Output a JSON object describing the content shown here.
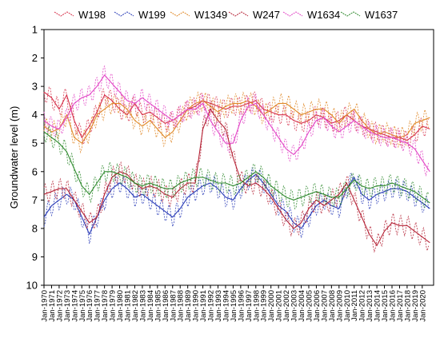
{
  "chart_data": {
    "type": "line",
    "ylabel": "Groundwater level (m)",
    "xlabel": "",
    "title": "",
    "legend_placement": "top",
    "grid": false,
    "y_inverted": true,
    "ylim": [
      1,
      10
    ],
    "yticks": [
      1,
      2,
      3,
      4,
      5,
      6,
      7,
      8,
      9,
      10
    ],
    "xlim_years": [
      1970,
      2021.5
    ],
    "xtick_labels": [
      "Jan-1970",
      "Jan-1971",
      "Jan-1972",
      "Jan-1973",
      "Jan-1974",
      "Jan-1975",
      "Jan-1976",
      "Jan-1977",
      "Jan-1978",
      "Jan-1979",
      "Jan-1980",
      "Jan-1981",
      "Jan-1982",
      "Jan-1983",
      "Jan-1984",
      "Jan-1985",
      "Jan-1986",
      "Jan-1987",
      "Jan-1988",
      "Jan-1989",
      "Jan-1990",
      "Jan-1991",
      "Jan-1992",
      "Jan-1993",
      "Jan-1994",
      "Jan-1995",
      "Jan-1996",
      "Jan-1997",
      "Jan-1998",
      "Jan-1999",
      "Jan-2000",
      "Jan-2001",
      "Jan-2002",
      "Jan-2003",
      "Jan-2004",
      "Jan-2005",
      "Jan-2006",
      "Jan-2007",
      "Jan-2008",
      "Jan-2009",
      "Jan-2010",
      "Jan-2011",
      "Jan-2012",
      "Jan-2013",
      "Jan-2014",
      "Jan-2015",
      "Jan-2016",
      "Jan-2017",
      "Jan-2018",
      "Jan-2019",
      "Jan-2020"
    ],
    "series": [
      {
        "name": "W198",
        "color": "#d6304a",
        "x": [
          1970,
          1971,
          1972,
          1973,
          1974,
          1975,
          1976,
          1977,
          1978,
          1979,
          1980,
          1981,
          1982,
          1983,
          1984,
          1985,
          1986,
          1987,
          1988,
          1989,
          1990,
          1991,
          1992,
          1993,
          1994,
          1995,
          1996,
          1997,
          1998,
          1999,
          2000,
          2001,
          2002,
          2003,
          2004,
          2005,
          2006,
          2007,
          2008,
          2009,
          2010,
          2011,
          2012,
          2013,
          2014,
          2015,
          2016,
          2017,
          2018,
          2019,
          2020,
          2021
        ],
        "y": [
          3.2,
          3.4,
          3.8,
          3.3,
          4.2,
          4.8,
          4.4,
          3.9,
          3.3,
          3.5,
          3.8,
          4.0,
          3.6,
          4.0,
          3.9,
          4.1,
          4.3,
          4.2,
          4.0,
          3.8,
          3.7,
          3.5,
          3.6,
          3.7,
          3.8,
          3.7,
          3.7,
          3.6,
          3.5,
          3.8,
          3.9,
          4.0,
          4.0,
          4.2,
          4.3,
          4.2,
          4.0,
          4.1,
          4.3,
          4.2,
          4.0,
          4.2,
          4.4,
          4.5,
          4.6,
          4.7,
          4.8,
          4.8,
          4.9,
          4.7,
          4.4,
          4.5
        ]
      },
      {
        "name": "W199",
        "color": "#2b3db8",
        "x": [
          1970,
          1971,
          1972,
          1973,
          1974,
          1975,
          1976,
          1977,
          1978,
          1979,
          1980,
          1981,
          1982,
          1983,
          1984,
          1985,
          1986,
          1987,
          1988,
          1989,
          1990,
          1991,
          1992,
          1993,
          1994,
          1995,
          1996,
          1997,
          1998,
          1999,
          2000,
          2001,
          2002,
          2003,
          2004,
          2005,
          2006,
          2007,
          2008,
          2009,
          2010,
          2011,
          2012,
          2013,
          2014,
          2015,
          2016,
          2017,
          2018,
          2019,
          2020,
          2021
        ],
        "y": [
          7.6,
          7.2,
          7.0,
          6.8,
          7.0,
          7.6,
          8.2,
          7.6,
          7.0,
          6.6,
          6.4,
          6.6,
          6.9,
          6.8,
          7.0,
          7.2,
          7.4,
          7.6,
          7.3,
          6.9,
          6.7,
          6.5,
          6.4,
          6.6,
          6.9,
          7.0,
          6.6,
          6.3,
          6.1,
          6.4,
          6.8,
          7.2,
          7.4,
          7.8,
          8.0,
          7.6,
          7.2,
          7.0,
          7.2,
          7.3,
          6.6,
          6.2,
          6.8,
          7.0,
          6.8,
          6.7,
          6.6,
          6.6,
          6.7,
          6.9,
          7.1,
          7.3
        ]
      },
      {
        "name": "W1349",
        "color": "#e08a2a",
        "x": [
          1970,
          1971,
          1972,
          1973,
          1974,
          1975,
          1976,
          1977,
          1978,
          1979,
          1980,
          1981,
          1982,
          1983,
          1984,
          1985,
          1986,
          1987,
          1988,
          1989,
          1990,
          1991,
          1992,
          1993,
          1994,
          1995,
          1996,
          1997,
          1998,
          1999,
          2000,
          2001,
          2002,
          2003,
          2004,
          2005,
          2006,
          2007,
          2008,
          2009,
          2010,
          2011,
          2012,
          2013,
          2014,
          2015,
          2016,
          2017,
          2018,
          2019,
          2020,
          2021
        ],
        "y": [
          4.4,
          4.6,
          4.5,
          4.0,
          4.8,
          5.0,
          4.6,
          4.0,
          3.8,
          3.6,
          3.6,
          3.8,
          4.2,
          4.4,
          4.2,
          4.5,
          4.8,
          4.6,
          4.2,
          3.8,
          3.6,
          3.5,
          3.7,
          3.9,
          3.7,
          3.6,
          3.6,
          3.5,
          3.7,
          4.0,
          3.8,
          3.6,
          3.6,
          3.8,
          4.0,
          3.9,
          3.8,
          3.8,
          4.0,
          4.3,
          4.0,
          3.8,
          4.2,
          4.5,
          4.7,
          4.6,
          4.7,
          4.8,
          4.7,
          4.3,
          4.2,
          4.1
        ]
      },
      {
        "name": "W247",
        "color": "#b52437",
        "x": [
          1970,
          1971,
          1972,
          1973,
          1974,
          1975,
          1976,
          1977,
          1978,
          1979,
          1980,
          1981,
          1982,
          1983,
          1984,
          1985,
          1986,
          1987,
          1988,
          1989,
          1990,
          1991,
          1992,
          1993,
          1994,
          1995,
          1996,
          1997,
          1998,
          1999,
          2000,
          2001,
          2002,
          2003,
          2004,
          2005,
          2006,
          2007,
          2008,
          2009,
          2010,
          2011,
          2012,
          2013,
          2014,
          2015,
          2016,
          2017,
          2018,
          2019,
          2020,
          2021
        ],
        "y": [
          6.8,
          6.7,
          6.6,
          6.6,
          7.0,
          7.4,
          7.8,
          7.6,
          6.8,
          6.2,
          6.0,
          6.1,
          6.4,
          6.6,
          6.5,
          6.6,
          6.8,
          6.9,
          6.6,
          6.4,
          6.4,
          4.5,
          3.8,
          4.2,
          4.5,
          5.5,
          6.3,
          6.5,
          6.4,
          6.6,
          6.9,
          7.3,
          7.7,
          8.0,
          7.8,
          7.3,
          7.0,
          7.2,
          7.0,
          6.8,
          6.4,
          7.0,
          7.6,
          8.2,
          8.6,
          8.1,
          7.8,
          7.9,
          7.9,
          8.1,
          8.3,
          8.5
        ]
      },
      {
        "name": "W1634",
        "color": "#e246c6",
        "x": [
          1970,
          1971,
          1972,
          1973,
          1974,
          1975,
          1976,
          1977,
          1978,
          1979,
          1980,
          1981,
          1982,
          1983,
          1984,
          1985,
          1986,
          1987,
          1988,
          1989,
          1990,
          1991,
          1992,
          1993,
          1994,
          1995,
          1996,
          1997,
          1998,
          1999,
          2000,
          2001,
          2002,
          2003,
          2004,
          2005,
          2006,
          2007,
          2008,
          2009,
          2010,
          2011,
          2012,
          2013,
          2014,
          2015,
          2016,
          2017,
          2018,
          2019,
          2020,
          2021
        ],
        "y": [
          4.2,
          4.4,
          4.5,
          4.1,
          3.6,
          3.4,
          3.3,
          3.0,
          2.6,
          2.9,
          3.2,
          3.5,
          3.6,
          3.4,
          3.6,
          3.8,
          4.0,
          4.2,
          4.0,
          3.8,
          3.8,
          3.6,
          4.2,
          4.6,
          5.0,
          5.0,
          4.2,
          3.7,
          3.6,
          4.0,
          4.4,
          4.8,
          5.2,
          5.4,
          5.1,
          4.6,
          4.2,
          4.1,
          4.4,
          4.6,
          4.4,
          4.2,
          4.4,
          4.6,
          4.7,
          4.8,
          4.8,
          4.9,
          5.0,
          5.2,
          5.6,
          6.0
        ]
      },
      {
        "name": "W1637",
        "color": "#2f8a2e",
        "x": [
          1970,
          1971,
          1972,
          1973,
          1974,
          1975,
          1976,
          1977,
          1978,
          1979,
          1980,
          1981,
          1982,
          1983,
          1984,
          1985,
          1986,
          1987,
          1988,
          1989,
          1990,
          1991,
          1992,
          1993,
          1994,
          1995,
          1996,
          1997,
          1998,
          1999,
          2000,
          2001,
          2002,
          2003,
          2004,
          2005,
          2006,
          2007,
          2008,
          2009,
          2010,
          2011,
          2012,
          2013,
          2014,
          2015,
          2016,
          2017,
          2018,
          2019,
          2020,
          2021
        ],
        "y": [
          4.6,
          4.8,
          5.0,
          5.3,
          5.9,
          6.5,
          6.8,
          6.4,
          6.0,
          6.0,
          6.1,
          6.2,
          6.4,
          6.5,
          6.4,
          6.5,
          6.6,
          6.6,
          6.4,
          6.3,
          6.2,
          6.2,
          6.3,
          6.4,
          6.4,
          6.5,
          6.4,
          6.2,
          6.0,
          6.2,
          6.5,
          6.7,
          6.9,
          7.0,
          6.9,
          6.8,
          6.7,
          6.8,
          6.9,
          6.9,
          6.6,
          6.3,
          6.5,
          6.6,
          6.5,
          6.5,
          6.4,
          6.5,
          6.6,
          6.7,
          6.9,
          7.1
        ]
      }
    ]
  }
}
